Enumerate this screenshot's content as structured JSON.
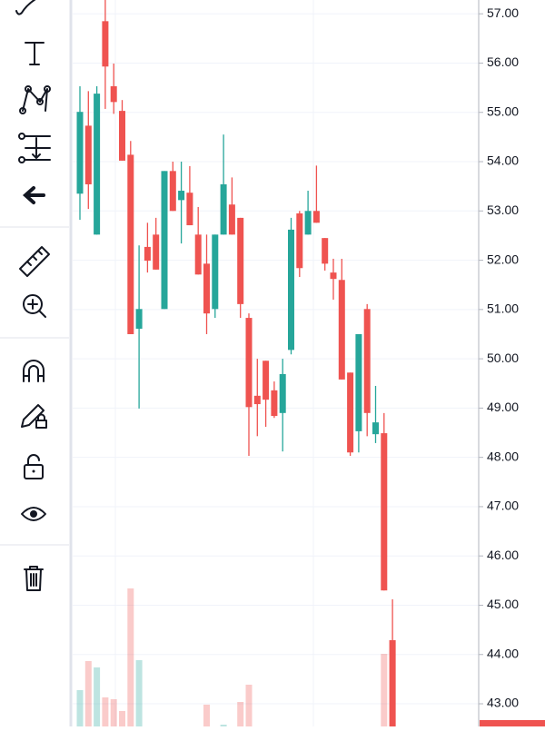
{
  "chart_data": {
    "type": "candlestick",
    "up_color": "#26a69a",
    "down_color": "#ef5350",
    "open": [
      53.35,
      54.73,
      52.52,
      56.85,
      55.53,
      55.03,
      54.14,
      50.61,
      52.27,
      52.52,
      51.01,
      53.81,
      53.22,
      53.37,
      52.52,
      51.93,
      51.01,
      52.52,
      53.13,
      52.86,
      50.83,
      49.25,
      49.96,
      49.36,
      48.9,
      50.18,
      52.95,
      52.52,
      53.0,
      52.45,
      51.75,
      51.6,
      49.72,
      48.53,
      51.01,
      48.47,
      48.49,
      44.29
    ],
    "high": [
      55.53,
      55.43,
      55.53,
      57.28,
      55.99,
      55.25,
      54.42,
      52.3,
      52.76,
      52.86,
      53.81,
      54.0,
      54.0,
      53.91,
      53.08,
      52.52,
      52.52,
      54.55,
      53.68,
      52.86,
      50.92,
      50.0,
      49.96,
      49.54,
      50.0,
      52.86,
      53.0,
      53.41,
      53.92,
      52.45,
      52.03,
      52.03,
      49.72,
      50.5,
      51.11,
      49.45,
      48.9,
      45.12
    ],
    "low": [
      52.82,
      53.04,
      52.52,
      55.07,
      54.97,
      54.02,
      50.5,
      48.99,
      51.75,
      51.81,
      51.01,
      53.0,
      52.34,
      52.71,
      51.71,
      50.5,
      50.83,
      52.52,
      52.52,
      50.83,
      48.03,
      48.43,
      48.62,
      48.8,
      48.12,
      50.09,
      51.66,
      52.52,
      52.76,
      51.79,
      51.2,
      49.58,
      48.03,
      48.1,
      48.43,
      48.29,
      45.3,
      42.3
    ],
    "close": [
      55.01,
      53.54,
      55.38,
      55.93,
      55.21,
      54.02,
      50.5,
      51.01,
      51.99,
      51.81,
      53.81,
      53.0,
      53.41,
      52.71,
      51.71,
      50.92,
      52.52,
      53.54,
      52.52,
      51.11,
      49.02,
      49.08,
      49.17,
      48.84,
      49.69,
      52.62,
      51.84,
      53.0,
      52.76,
      51.93,
      51.62,
      49.58,
      48.1,
      50.5,
      48.9,
      48.71,
      45.3,
      42.4
    ],
    "volume": [
      40,
      72,
      65,
      32,
      30,
      17,
      152,
      73,
      0,
      0,
      0,
      0,
      0,
      0,
      0,
      24,
      0,
      2,
      0,
      27,
      46,
      0,
      0,
      0,
      0,
      0,
      0,
      0,
      0,
      0,
      0,
      0,
      0,
      0,
      0,
      0,
      80,
      95
    ],
    "ylim": [
      42.54,
      57.28
    ],
    "yticks": [
      {
        "value": 43,
        "label": "43.00"
      },
      {
        "value": 44,
        "label": "44.00"
      },
      {
        "value": 45,
        "label": "45.00"
      },
      {
        "value": 46,
        "label": "46.00"
      },
      {
        "value": 47,
        "label": "47.00"
      },
      {
        "value": 48,
        "label": "48.00"
      },
      {
        "value": 49,
        "label": "49.00"
      },
      {
        "value": 50,
        "label": "50.00"
      },
      {
        "value": 51,
        "label": "51.00"
      },
      {
        "value": 52,
        "label": "52.00"
      },
      {
        "value": 53,
        "label": "53.00"
      },
      {
        "value": 54,
        "label": "54.00"
      },
      {
        "value": 55,
        "label": "55.00"
      },
      {
        "value": 56,
        "label": "56.00"
      },
      {
        "value": 57,
        "label": "57.00"
      }
    ],
    "grid": true
  }
}
